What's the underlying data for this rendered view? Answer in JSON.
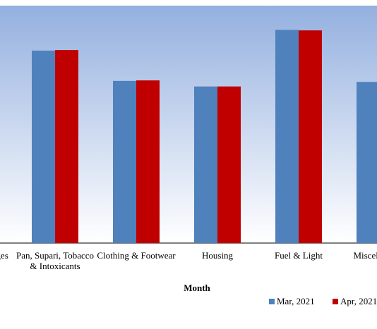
{
  "chart_data": {
    "type": "bar",
    "xlabel": "Month",
    "categories": [
      "Food & Beverages",
      "Pan, Supari, Tobacco & Intoxicants",
      "Clothing & Footwear",
      "Housing",
      "Fuel & Light",
      "Miscellaneous"
    ],
    "category_lines": [
      [
        "Food & Beverages"
      ],
      [
        "Pan, Supari, Tobacco",
        "& Intoxicants"
      ],
      [
        "Clothing & Footwear"
      ],
      [
        "Housing"
      ],
      [
        "Fuel & Light"
      ],
      [
        "Miscellaneous"
      ]
    ],
    "series": [
      {
        "name": "Mar, 2021",
        "color": "#4F81BD",
        "values": [
          null,
          190.5,
          160.5,
          155.0,
          211.0,
          159.5
        ]
      },
      {
        "name": "Apr, 2021",
        "color": "#C00000",
        "values": [
          null,
          191.0,
          161.0,
          155.0,
          210.5,
          null
        ]
      }
    ],
    "ylim": [
      0,
      235
    ],
    "grid": false,
    "legend_position": "bottom-right",
    "plot_background": "gradient blue-to-white"
  }
}
